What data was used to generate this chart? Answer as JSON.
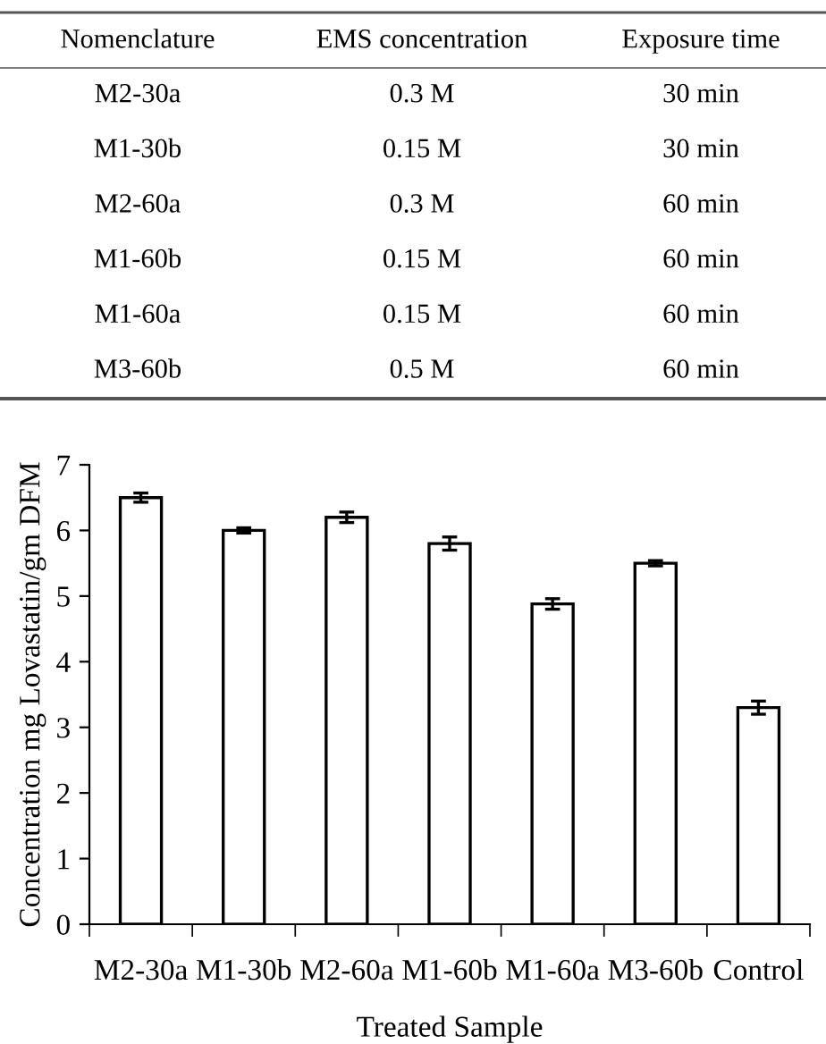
{
  "chart_data": [
    {
      "type": "other",
      "annotations": [
        "Nomenclature",
        "EMS concentration",
        "Exposure time",
        "M2-30a",
        "0.3 M",
        "30 min",
        "M1-30b",
        "0.15 M",
        "30 min",
        "M2-60a",
        "0.3 M",
        "60 min",
        "M1-60b",
        "0.15 M",
        "60 min",
        "M1-60a",
        "0.15 M",
        "60 min",
        "M3-60b",
        "0.5 M",
        "60 min"
      ]
    },
    {
      "type": "bar",
      "categories": [
        "M2-30a",
        "M1-30b",
        "M2-60a",
        "M1-60b",
        "M1-60a",
        "M3-60b",
        "Control"
      ],
      "values": [
        6.5,
        6.0,
        6.2,
        5.8,
        4.88,
        5.5,
        3.3
      ],
      "errors": [
        0.07,
        0.04,
        0.08,
        0.1,
        0.08,
        0.04,
        0.1
      ],
      "color": "#ffffff",
      "xlabel": "Treated Sample",
      "ylabel": "Concentration mg Lovastatin/gm DFM",
      "ylim": [
        0,
        7
      ],
      "yticks": [
        0,
        1,
        2,
        3,
        4,
        5,
        6,
        7
      ],
      "grid": false,
      "legend": false
    }
  ]
}
